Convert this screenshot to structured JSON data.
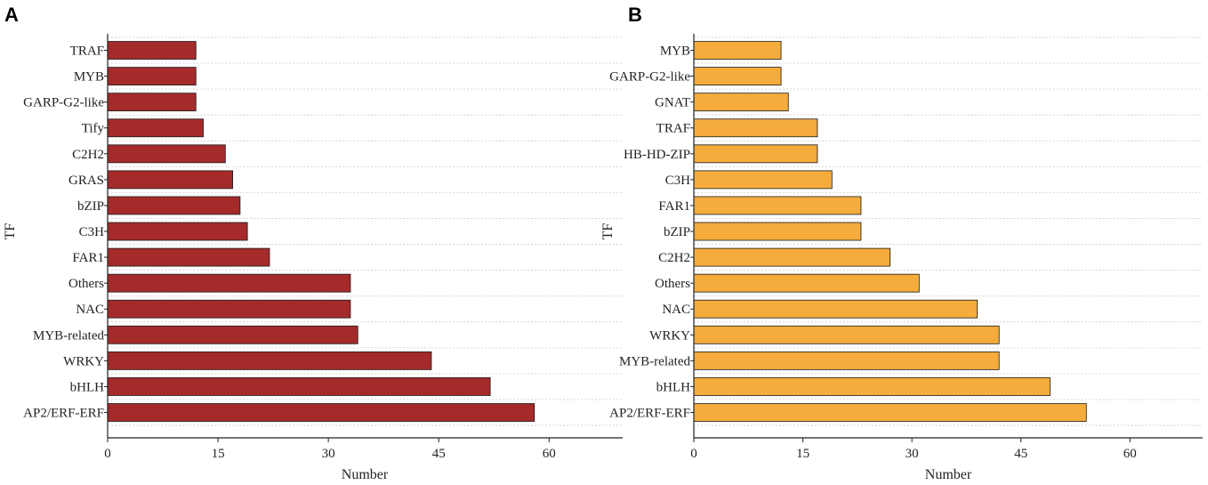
{
  "chart_data": [
    {
      "panel": "A",
      "type": "bar",
      "orientation": "horizontal",
      "categories": [
        "TRAF",
        "MYB",
        "GARP-G2-like",
        "Tify",
        "C2H2",
        "GRAS",
        "bZIP",
        "C3H",
        "FAR1",
        "Others",
        "NAC",
        "MYB-related",
        "WRKY",
        "bHLH",
        "AP2/ERF-ERF"
      ],
      "values": [
        12,
        12,
        12,
        13,
        16,
        17,
        18,
        19,
        22,
        33,
        33,
        34,
        44,
        52,
        58
      ],
      "xlabel": "Number",
      "ylabel": "TF",
      "xlim": [
        0,
        70
      ],
      "xticks": [
        0,
        15,
        30,
        45,
        60
      ],
      "bar_color": "#a52a2a",
      "grid": true
    },
    {
      "panel": "B",
      "type": "bar",
      "orientation": "horizontal",
      "categories": [
        "MYB",
        "GARP-G2-like",
        "GNAT",
        "TRAF",
        "HB-HD-ZIP",
        "C3H",
        "FAR1",
        "bZIP",
        "C2H2",
        "Others",
        "NAC",
        "WRKY",
        "MYB-related",
        "bHLH",
        "AP2/ERF-ERF"
      ],
      "values": [
        12,
        12,
        13,
        17,
        17,
        19,
        23,
        23,
        27,
        31,
        39,
        42,
        42,
        49,
        54
      ],
      "xlabel": "Number",
      "ylabel": "TF",
      "xlim": [
        0,
        70
      ],
      "xticks": [
        0,
        15,
        30,
        45,
        60
      ],
      "bar_color": "#f5ac3c",
      "grid": true
    }
  ]
}
